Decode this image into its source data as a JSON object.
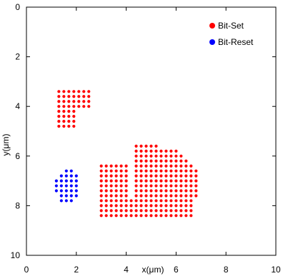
{
  "chart_data": {
    "type": "scatter",
    "xlabel": "x(μm)",
    "ylabel": "y(μm)",
    "xlim": [
      0,
      10
    ],
    "ylim": [
      0,
      10
    ],
    "y_inverted": true,
    "x_ticks": [
      0,
      2,
      4,
      6,
      8,
      10
    ],
    "y_ticks": [
      0,
      2,
      4,
      6,
      8,
      10
    ],
    "grid": false,
    "legend_position": "top-right",
    "series": [
      {
        "name": "Bit-Set",
        "color": "#ff0000",
        "regions": [
          {
            "x_start": 1.3,
            "x_end": 2.5,
            "y_start": 3.4,
            "y_end": 4.0,
            "step": 0.2
          },
          {
            "x_start": 1.3,
            "x_end": 1.9,
            "y_start": 4.2,
            "y_end": 4.8,
            "step": 0.2
          },
          {
            "x_start": 3.0,
            "x_end": 4.0,
            "y_start": 6.4,
            "y_end": 8.4,
            "step": 0.2
          },
          {
            "x_start": 4.2,
            "x_end": 6.6,
            "y_start": 7.8,
            "y_end": 8.4,
            "step": 0.2
          },
          {
            "x_start": 4.4,
            "x_end": 6.8,
            "y_start": 6.6,
            "y_end": 7.6,
            "step": 0.2
          },
          {
            "x_start": 4.4,
            "x_end": 6.6,
            "y_start": 6.4,
            "y_end": 6.4,
            "step": 0.2
          },
          {
            "x_start": 4.4,
            "x_end": 6.4,
            "y_start": 6.2,
            "y_end": 6.2,
            "step": 0.2
          },
          {
            "x_start": 4.4,
            "x_end": 6.2,
            "y_start": 6.0,
            "y_end": 6.0,
            "step": 0.2
          },
          {
            "x_start": 4.4,
            "x_end": 6.0,
            "y_start": 5.8,
            "y_end": 5.8,
            "step": 0.2
          },
          {
            "x_start": 4.4,
            "x_end": 5.2,
            "y_start": 5.6,
            "y_end": 5.6,
            "step": 0.2
          }
        ]
      },
      {
        "name": "Bit-Reset",
        "color": "#0000ff",
        "regions": [
          {
            "x_start": 1.6,
            "x_end": 1.8,
            "y_start": 6.6,
            "y_end": 6.6,
            "step": 0.2
          },
          {
            "x_start": 1.4,
            "x_end": 2.0,
            "y_start": 6.8,
            "y_end": 6.8,
            "step": 0.2
          },
          {
            "x_start": 1.2,
            "x_end": 2.0,
            "y_start": 7.0,
            "y_end": 7.4,
            "step": 0.2
          },
          {
            "x_start": 1.4,
            "x_end": 2.0,
            "y_start": 7.6,
            "y_end": 7.6,
            "step": 0.2
          },
          {
            "x_start": 1.4,
            "x_end": 1.8,
            "y_start": 7.8,
            "y_end": 7.8,
            "step": 0.2
          }
        ]
      }
    ]
  }
}
